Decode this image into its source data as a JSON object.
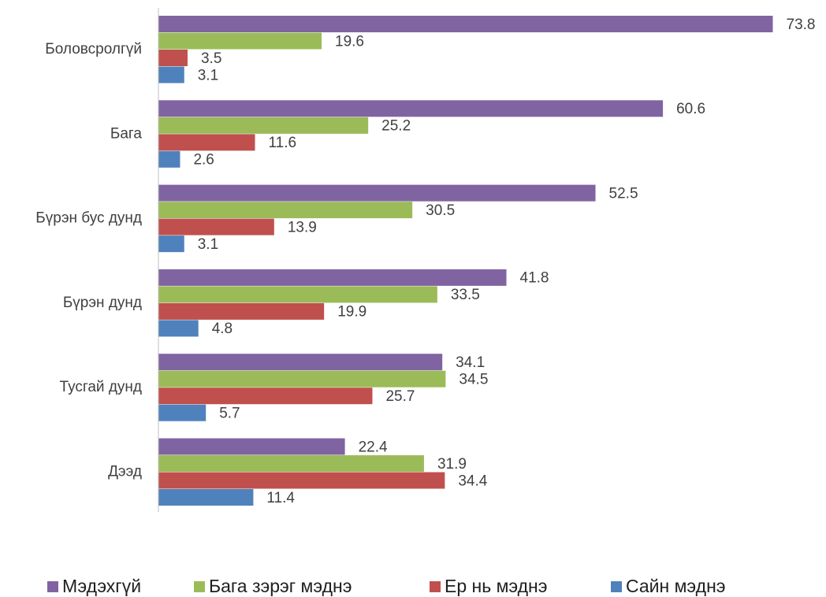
{
  "chart_data": {
    "type": "hbar",
    "categories": [
      "Боловсролгүй",
      "Бага",
      "Бүрэн бус дунд",
      "Бүрэн дунд",
      "Тусгай дунд",
      "Дээд"
    ],
    "series": [
      {
        "name": "Мэдэхгүй",
        "color": "#8064a2",
        "values": [
          73.8,
          60.6,
          52.5,
          41.8,
          34.1,
          22.4
        ]
      },
      {
        "name": "Бага зэрэг мэднэ",
        "color": "#9bbb59",
        "values": [
          19.6,
          25.2,
          30.5,
          33.5,
          34.5,
          31.9
        ]
      },
      {
        "name": "Ер нь мэднэ",
        "color": "#c0504d",
        "values": [
          3.5,
          11.6,
          13.9,
          19.9,
          25.7,
          34.4
        ]
      },
      {
        "name": "Сайн мэднэ",
        "color": "#4f81bd",
        "values": [
          3.1,
          2.6,
          3.1,
          4.8,
          5.7,
          11.4
        ]
      }
    ],
    "xlim": [
      0,
      80
    ],
    "legend": "bottom"
  }
}
